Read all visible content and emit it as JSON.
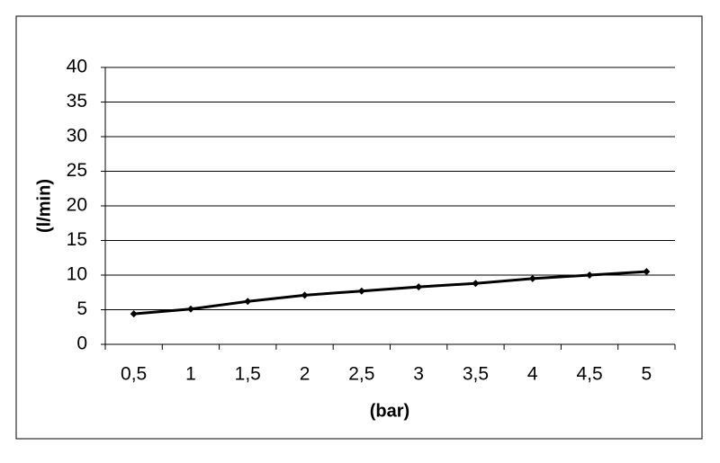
{
  "chart_data": {
    "type": "line",
    "x_label": "(bar)",
    "y_label": "(l/min)",
    "categories": [
      "0,5",
      "1",
      "1,5",
      "2",
      "2,5",
      "3",
      "3,5",
      "4",
      "4,5",
      "5"
    ],
    "series": [
      {
        "color": "#000000",
        "values": [
          4.4,
          5.1,
          6.2,
          7.1,
          7.7,
          8.3,
          8.8,
          9.5,
          10.0,
          10.5
        ]
      }
    ],
    "ylim": [
      0,
      40
    ],
    "yticks": [
      0,
      5,
      10,
      15,
      20,
      25,
      30,
      35,
      40
    ],
    "grid": true
  }
}
